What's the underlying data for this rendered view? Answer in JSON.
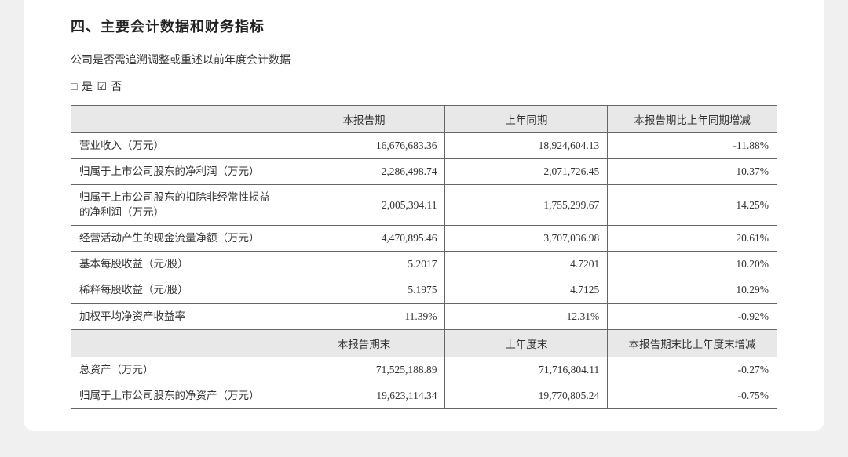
{
  "title": "四、主要会计数据和财务指标",
  "subtext": "公司是否需追溯调整或重述以前年度会计数据",
  "checkbox_line": "□ 是  ☑ 否",
  "table": {
    "header1": {
      "col1": "",
      "col2": "本报告期",
      "col3": "上年同期",
      "col4": "本报告期比上年同期增减"
    },
    "rows1": [
      {
        "label": "营业收入（万元）",
        "a": "16,676,683.36",
        "b": "18,924,604.13",
        "c": "-11.88%"
      },
      {
        "label": "归属于上市公司股东的净利润（万元）",
        "a": "2,286,498.74",
        "b": "2,071,726.45",
        "c": "10.37%"
      },
      {
        "label": "归属于上市公司股东的扣除非经常性损益的净利润（万元）",
        "a": "2,005,394.11",
        "b": "1,755,299.67",
        "c": "14.25%"
      },
      {
        "label": "经营活动产生的现金流量净额（万元）",
        "a": "4,470,895.46",
        "b": "3,707,036.98",
        "c": "20.61%"
      },
      {
        "label": "基本每股收益（元/股）",
        "a": "5.2017",
        "b": "4.7201",
        "c": "10.20%"
      },
      {
        "label": "稀释每股收益（元/股）",
        "a": "5.1975",
        "b": "4.7125",
        "c": "10.29%"
      },
      {
        "label": "加权平均净资产收益率",
        "a": "11.39%",
        "b": "12.31%",
        "c": "-0.92%"
      }
    ],
    "header2": {
      "col1": "",
      "col2": "本报告期末",
      "col3": "上年度末",
      "col4": "本报告期末比上年度末增减"
    },
    "rows2": [
      {
        "label": "总资产（万元）",
        "a": "71,525,188.89",
        "b": "71,716,804.11",
        "c": "-0.27%"
      },
      {
        "label": "归属于上市公司股东的净资产（万元）",
        "a": "19,623,114.34",
        "b": "19,770,805.24",
        "c": "-0.75%"
      }
    ]
  }
}
